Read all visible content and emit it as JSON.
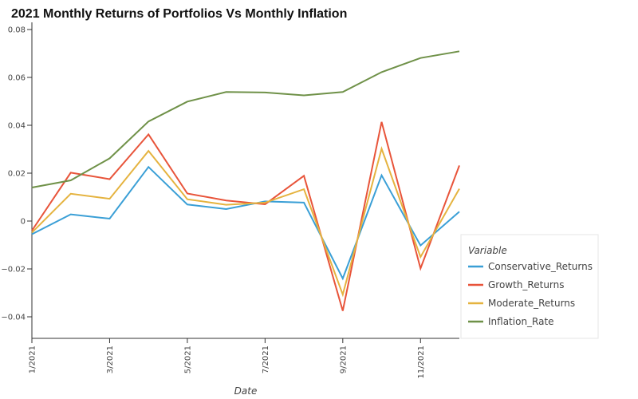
{
  "chart_data": {
    "type": "line",
    "title": "2021 Monthly Returns of Portfolios Vs Monthly Inflation",
    "xlabel": "Date",
    "ylabel": "",
    "x": [
      "1/2021",
      "2/2021",
      "3/2021",
      "4/2021",
      "5/2021",
      "6/2021",
      "7/2021",
      "8/2021",
      "9/2021",
      "10/2021",
      "11/2021",
      "12/2021"
    ],
    "x_tick_labels": [
      "1/2021",
      "3/2021",
      "5/2021",
      "7/2021",
      "9/2021",
      "11/2021"
    ],
    "y_ticks": [
      -0.04,
      -0.02,
      0,
      0.02,
      0.04,
      0.06,
      0.08
    ],
    "y_tick_labels": [
      "−0.04",
      "−0.02",
      "0",
      "0.02",
      "0.04",
      "0.06",
      "0.08"
    ],
    "ylim": [
      -0.049,
      0.083
    ],
    "grid": false,
    "legend": {
      "title": "Variable",
      "placement": "right"
    },
    "series": [
      {
        "name": "Conservative_Returns",
        "color": "#3a9fd6",
        "values": [
          -0.0055,
          0.0028,
          0.001,
          0.0226,
          0.0069,
          0.005,
          0.0082,
          0.0077,
          -0.024,
          0.0191,
          -0.0102,
          0.0039
        ]
      },
      {
        "name": "Growth_Returns",
        "color": "#e8543a",
        "values": [
          -0.004,
          0.0202,
          0.0175,
          0.0362,
          0.0115,
          0.0086,
          0.007,
          0.0189,
          -0.0375,
          0.0414,
          -0.0198,
          0.0232
        ]
      },
      {
        "name": "Moderate_Returns",
        "color": "#e5b33f",
        "values": [
          -0.0048,
          0.0114,
          0.0093,
          0.0293,
          0.0091,
          0.0068,
          0.0077,
          0.0133,
          -0.0307,
          0.0302,
          -0.015,
          0.0135
        ]
      },
      {
        "name": "Inflation_Rate",
        "color": "#6f9148",
        "values": [
          0.014,
          0.017,
          0.0262,
          0.0416,
          0.0499,
          0.0539,
          0.0537,
          0.0525,
          0.0539,
          0.0622,
          0.0681,
          0.0709
        ]
      }
    ]
  }
}
